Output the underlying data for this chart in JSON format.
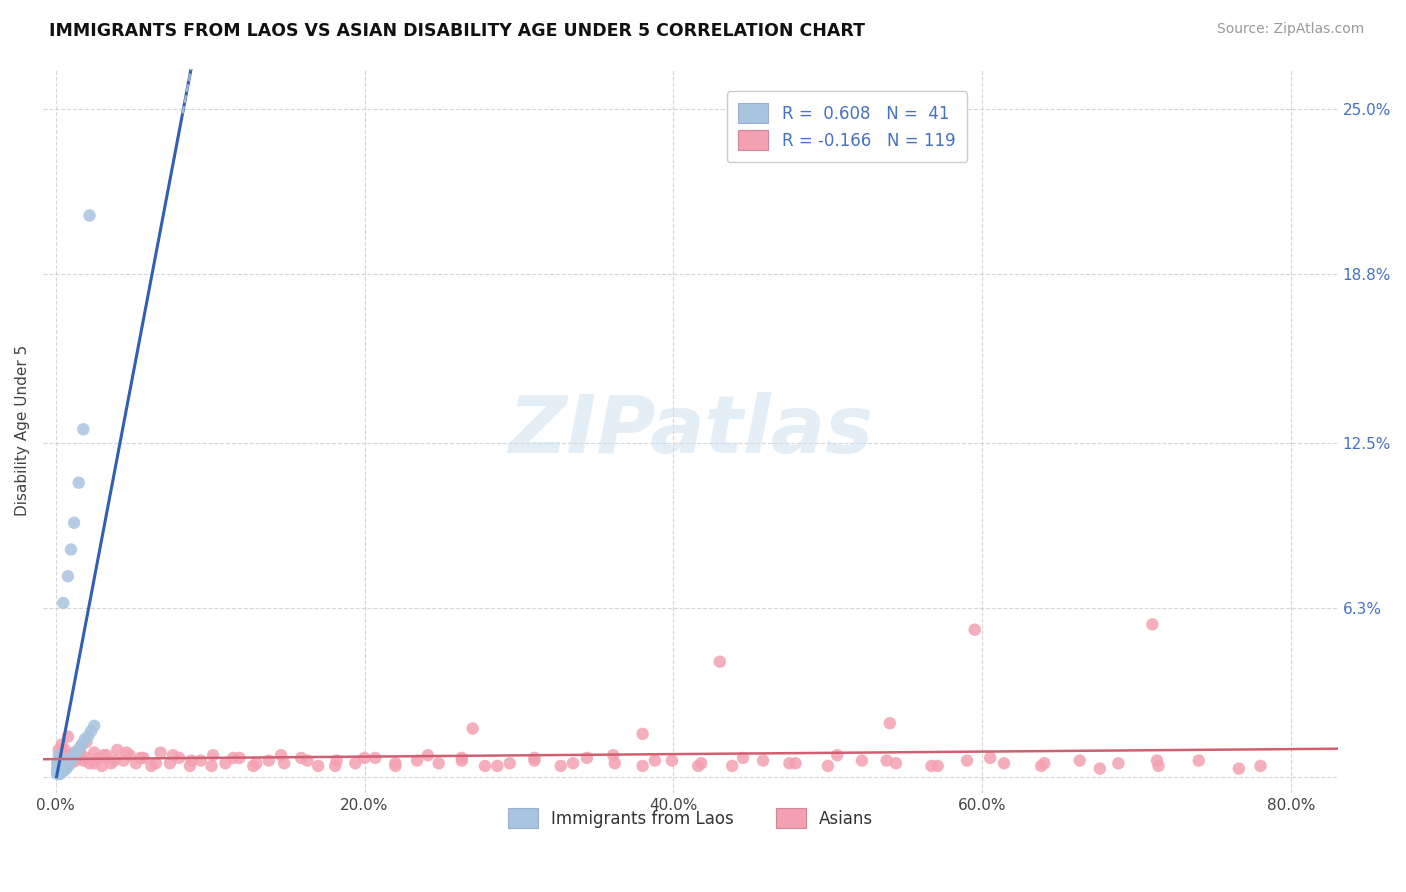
{
  "title": "IMMIGRANTS FROM LAOS VS ASIAN DISABILITY AGE UNDER 5 CORRELATION CHART",
  "source": "Source: ZipAtlas.com",
  "xlim": [
    -0.008,
    0.83
  ],
  "ylim": [
    -0.006,
    0.265
  ],
  "x_tick_vals": [
    0.0,
    0.2,
    0.4,
    0.6,
    0.8
  ],
  "x_tick_labels": [
    "0.0%",
    "20.0%",
    "40.0%",
    "60.0%",
    "80.0%"
  ],
  "y_tick_vals": [
    0.0,
    0.063,
    0.125,
    0.188,
    0.25
  ],
  "y_tick_labels": [
    "",
    "6.3%",
    "12.5%",
    "18.8%",
    "25.0%"
  ],
  "r_blue": 0.608,
  "n_blue": 41,
  "r_pink": -0.166,
  "n_pink": 119,
  "blue_scatter_color": "#a8c4e0",
  "blue_line_color": "#3060b0",
  "blue_dash_color": "#aabbcc",
  "pink_scatter_color": "#f4a0b0",
  "pink_line_color": "#d06070",
  "legend_label_blue": "Immigrants from Laos",
  "legend_label_pink": "Asians",
  "watermark": "ZIPatlas",
  "ylabel": "Disability Age Under 5",
  "blue_x": [
    0.001,
    0.001,
    0.001,
    0.001,
    0.002,
    0.002,
    0.002,
    0.002,
    0.002,
    0.003,
    0.003,
    0.003,
    0.003,
    0.004,
    0.004,
    0.004,
    0.005,
    0.005,
    0.006,
    0.006,
    0.007,
    0.007,
    0.008,
    0.009,
    0.01,
    0.011,
    0.012,
    0.013,
    0.015,
    0.017,
    0.019,
    0.021,
    0.023,
    0.025,
    0.005,
    0.008,
    0.01,
    0.012,
    0.015,
    0.018,
    0.022
  ],
  "blue_y": [
    0.001,
    0.002,
    0.003,
    0.005,
    0.001,
    0.002,
    0.003,
    0.004,
    0.008,
    0.001,
    0.002,
    0.004,
    0.006,
    0.002,
    0.003,
    0.005,
    0.002,
    0.004,
    0.003,
    0.005,
    0.003,
    0.006,
    0.004,
    0.005,
    0.006,
    0.007,
    0.008,
    0.009,
    0.01,
    0.012,
    0.014,
    0.015,
    0.017,
    0.019,
    0.065,
    0.075,
    0.085,
    0.095,
    0.11,
    0.13,
    0.21
  ],
  "pink_x": [
    0.003,
    0.004,
    0.005,
    0.006,
    0.007,
    0.008,
    0.009,
    0.01,
    0.012,
    0.014,
    0.016,
    0.018,
    0.02,
    0.022,
    0.025,
    0.028,
    0.03,
    0.033,
    0.036,
    0.04,
    0.044,
    0.048,
    0.052,
    0.057,
    0.062,
    0.068,
    0.074,
    0.08,
    0.087,
    0.094,
    0.102,
    0.11,
    0.119,
    0.128,
    0.138,
    0.148,
    0.159,
    0.17,
    0.182,
    0.194,
    0.207,
    0.22,
    0.234,
    0.248,
    0.263,
    0.278,
    0.294,
    0.31,
    0.327,
    0.344,
    0.362,
    0.38,
    0.399,
    0.418,
    0.438,
    0.458,
    0.479,
    0.5,
    0.522,
    0.544,
    0.567,
    0.59,
    0.614,
    0.638,
    0.663,
    0.688,
    0.714,
    0.74,
    0.766,
    0.78,
    0.002,
    0.003,
    0.004,
    0.005,
    0.006,
    0.008,
    0.01,
    0.013,
    0.016,
    0.02,
    0.025,
    0.031,
    0.038,
    0.046,
    0.055,
    0.065,
    0.076,
    0.088,
    0.101,
    0.115,
    0.13,
    0.146,
    0.163,
    0.181,
    0.2,
    0.22,
    0.241,
    0.263,
    0.286,
    0.31,
    0.335,
    0.361,
    0.388,
    0.416,
    0.445,
    0.475,
    0.506,
    0.538,
    0.571,
    0.605,
    0.64,
    0.676,
    0.713,
    0.595,
    0.43,
    0.71,
    0.27,
    0.54,
    0.38
  ],
  "pink_y": [
    0.008,
    0.012,
    0.006,
    0.01,
    0.004,
    0.015,
    0.008,
    0.005,
    0.009,
    0.007,
    0.011,
    0.006,
    0.013,
    0.005,
    0.009,
    0.007,
    0.004,
    0.008,
    0.005,
    0.01,
    0.006,
    0.008,
    0.005,
    0.007,
    0.004,
    0.009,
    0.005,
    0.007,
    0.004,
    0.006,
    0.008,
    0.005,
    0.007,
    0.004,
    0.006,
    0.005,
    0.007,
    0.004,
    0.006,
    0.005,
    0.007,
    0.004,
    0.006,
    0.005,
    0.007,
    0.004,
    0.005,
    0.006,
    0.004,
    0.007,
    0.005,
    0.004,
    0.006,
    0.005,
    0.004,
    0.006,
    0.005,
    0.004,
    0.006,
    0.005,
    0.004,
    0.006,
    0.005,
    0.004,
    0.006,
    0.005,
    0.004,
    0.006,
    0.003,
    0.004,
    0.01,
    0.008,
    0.006,
    0.009,
    0.007,
    0.005,
    0.008,
    0.006,
    0.009,
    0.007,
    0.005,
    0.008,
    0.006,
    0.009,
    0.007,
    0.005,
    0.008,
    0.006,
    0.004,
    0.007,
    0.005,
    0.008,
    0.006,
    0.004,
    0.007,
    0.005,
    0.008,
    0.006,
    0.004,
    0.007,
    0.005,
    0.008,
    0.006,
    0.004,
    0.007,
    0.005,
    0.008,
    0.006,
    0.004,
    0.007,
    0.005,
    0.003,
    0.006,
    0.055,
    0.043,
    0.057,
    0.018,
    0.02,
    0.016
  ]
}
